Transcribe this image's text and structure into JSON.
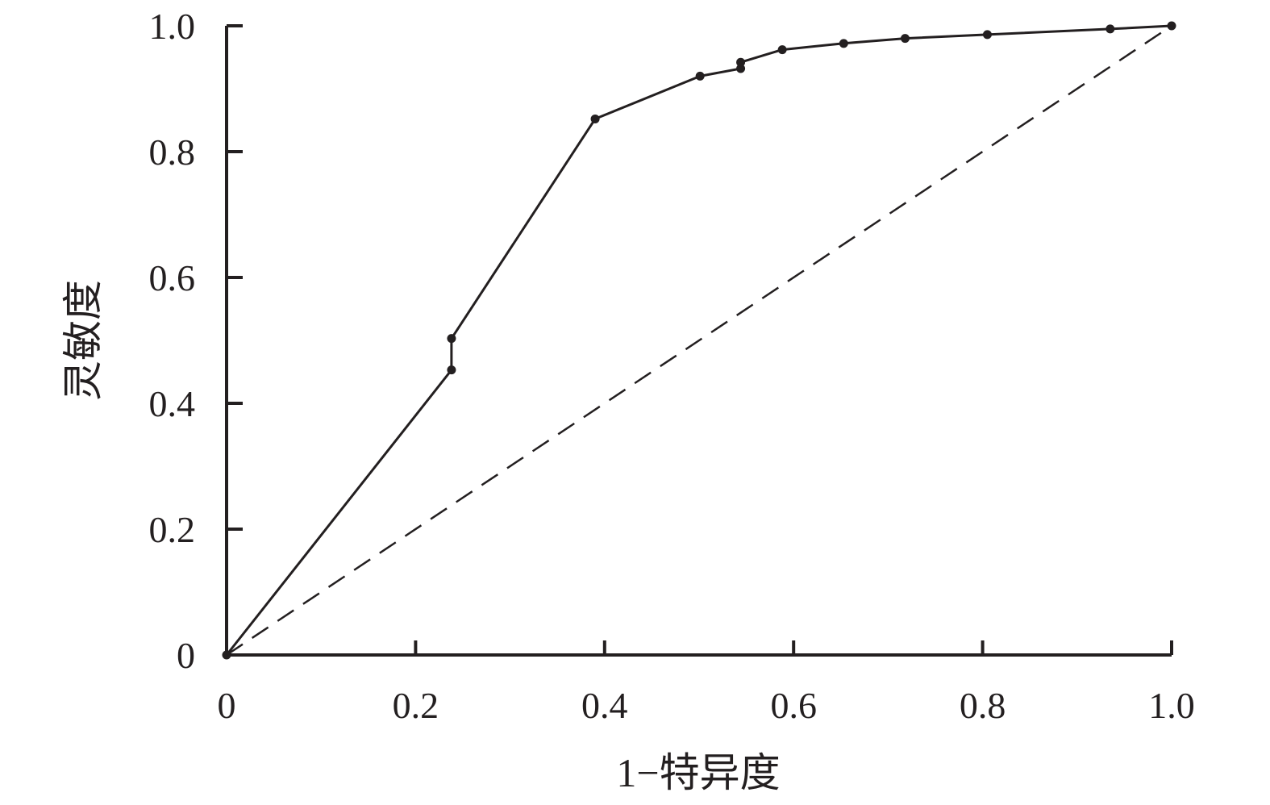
{
  "chart_data": {
    "type": "line",
    "title": "",
    "xlabel": "1−特异度",
    "ylabel": "灵敏度",
    "xlim": [
      0,
      1.0
    ],
    "ylim": [
      0,
      1.0
    ],
    "x_ticks": [
      0,
      0.2,
      0.4,
      0.6,
      0.8,
      1.0
    ],
    "y_ticks": [
      0,
      0.2,
      0.4,
      0.6,
      0.8,
      1.0
    ],
    "x_tick_labels": [
      "0",
      "0.2",
      "0.4",
      "0.6",
      "0.8",
      "1.0"
    ],
    "y_tick_labels": [
      "0",
      "0.2",
      "0.4",
      "0.6",
      "0.8",
      "1.0"
    ],
    "grid": false,
    "legend": "none",
    "series": [
      {
        "style": "solid-with-markers",
        "color": "#231f20",
        "points": [
          [
            0.0,
            0.0
          ],
          [
            0.238,
            0.453
          ],
          [
            0.238,
            0.503
          ],
          [
            0.39,
            0.852
          ],
          [
            0.501,
            0.92
          ],
          [
            0.544,
            0.932
          ],
          [
            0.544,
            0.942
          ],
          [
            0.588,
            0.962
          ],
          [
            0.653,
            0.972
          ],
          [
            0.718,
            0.98
          ],
          [
            0.805,
            0.986
          ],
          [
            0.935,
            0.995
          ],
          [
            1.0,
            1.0
          ]
        ]
      },
      {
        "style": "dashed",
        "color": "#231f20",
        "points": [
          [
            0.0,
            0.0
          ],
          [
            1.0,
            1.0
          ]
        ]
      }
    ]
  }
}
